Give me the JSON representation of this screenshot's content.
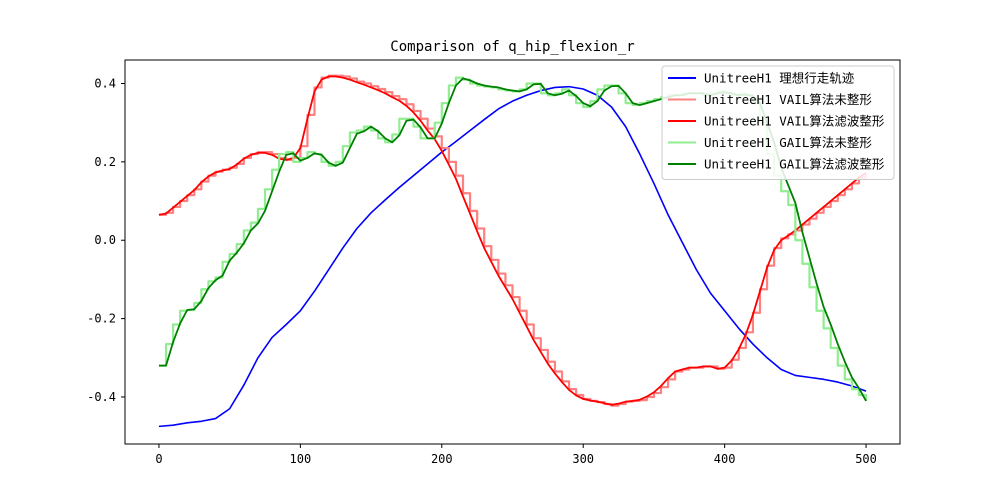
{
  "chart_data": {
    "type": "line",
    "title": "Comparison of q_hip_flexion_r",
    "xlabel": "",
    "ylabel": "",
    "xlim": [
      -24,
      524
    ],
    "ylim": [
      -0.52,
      0.46
    ],
    "xticks": [
      "0",
      "100",
      "200",
      "300",
      "400",
      "500"
    ],
    "yticks": [
      "-0.4",
      "-0.2",
      "0.0",
      "0.2",
      "0.4"
    ],
    "grid": false,
    "legend_position": "top-right",
    "series": [
      {
        "name": "UnitreeH1 理想行走轨迹",
        "color": "#0000ff",
        "style": "smooth",
        "width": 1.6,
        "x": [
          0,
          10,
          20,
          30,
          40,
          50,
          60,
          70,
          80,
          90,
          100,
          110,
          120,
          130,
          140,
          150,
          160,
          170,
          180,
          190,
          200,
          210,
          220,
          230,
          240,
          250,
          260,
          270,
          280,
          290,
          300,
          310,
          320,
          330,
          340,
          350,
          360,
          370,
          380,
          390,
          400,
          410,
          420,
          430,
          440,
          450,
          460,
          470,
          480,
          490,
          500
        ],
        "y": [
          -0.475,
          -0.472,
          -0.466,
          -0.462,
          -0.455,
          -0.43,
          -0.37,
          -0.3,
          -0.248,
          -0.215,
          -0.18,
          -0.13,
          -0.075,
          -0.02,
          0.03,
          0.07,
          0.103,
          0.135,
          0.165,
          0.195,
          0.225,
          0.252,
          0.28,
          0.308,
          0.335,
          0.355,
          0.37,
          0.382,
          0.39,
          0.392,
          0.386,
          0.37,
          0.34,
          0.29,
          0.22,
          0.145,
          0.065,
          -0.005,
          -0.075,
          -0.135,
          -0.18,
          -0.225,
          -0.265,
          -0.3,
          -0.33,
          -0.345,
          -0.35,
          -0.355,
          -0.362,
          -0.372,
          -0.385
        ]
      },
      {
        "name": "UnitreeH1 VAIL算法未整形",
        "color": "#ff8080",
        "style": "step",
        "width": 2.2,
        "x": [
          0,
          5,
          10,
          15,
          20,
          25,
          30,
          35,
          40,
          45,
          50,
          55,
          60,
          65,
          70,
          75,
          80,
          85,
          90,
          95,
          100,
          105,
          110,
          115,
          120,
          125,
          130,
          135,
          140,
          145,
          150,
          155,
          160,
          165,
          170,
          175,
          180,
          185,
          190,
          195,
          200,
          205,
          210,
          215,
          220,
          225,
          230,
          235,
          240,
          245,
          250,
          255,
          260,
          265,
          270,
          275,
          280,
          285,
          290,
          295,
          300,
          305,
          310,
          315,
          320,
          325,
          330,
          335,
          340,
          345,
          350,
          355,
          360,
          365,
          370,
          375,
          380,
          385,
          390,
          395,
          400,
          405,
          410,
          415,
          420,
          425,
          430,
          435,
          440,
          445,
          450,
          455,
          460,
          465,
          470,
          475,
          480,
          485,
          490,
          495,
          500
        ],
        "y": [
          0.065,
          0.07,
          0.085,
          0.1,
          0.115,
          0.13,
          0.15,
          0.165,
          0.175,
          0.18,
          0.185,
          0.195,
          0.21,
          0.22,
          0.225,
          0.225,
          0.22,
          0.21,
          0.205,
          0.21,
          0.24,
          0.32,
          0.39,
          0.415,
          0.42,
          0.42,
          0.418,
          0.413,
          0.405,
          0.4,
          0.393,
          0.386,
          0.378,
          0.368,
          0.36,
          0.347,
          0.33,
          0.31,
          0.285,
          0.265,
          0.235,
          0.2,
          0.165,
          0.12,
          0.075,
          0.03,
          -0.015,
          -0.05,
          -0.085,
          -0.115,
          -0.145,
          -0.18,
          -0.215,
          -0.25,
          -0.28,
          -0.31,
          -0.335,
          -0.36,
          -0.38,
          -0.395,
          -0.405,
          -0.41,
          -0.413,
          -0.418,
          -0.422,
          -0.418,
          -0.412,
          -0.41,
          -0.408,
          -0.4,
          -0.39,
          -0.375,
          -0.355,
          -0.335,
          -0.33,
          -0.325,
          -0.325,
          -0.322,
          -0.322,
          -0.328,
          -0.325,
          -0.305,
          -0.275,
          -0.235,
          -0.185,
          -0.125,
          -0.065,
          -0.02,
          0.005,
          0.015,
          0.025,
          0.04,
          0.055,
          0.07,
          0.085,
          0.1,
          0.115,
          0.13,
          0.145,
          0.16,
          0.17
        ]
      },
      {
        "name": "UnitreeH1 VAIL算法滤波整形",
        "color": "#ff0000",
        "style": "smooth",
        "width": 1.8,
        "x": [
          0,
          5,
          10,
          15,
          20,
          25,
          30,
          35,
          40,
          45,
          50,
          55,
          60,
          65,
          70,
          75,
          80,
          85,
          90,
          95,
          100,
          105,
          110,
          115,
          120,
          125,
          130,
          135,
          140,
          145,
          150,
          155,
          160,
          165,
          170,
          175,
          180,
          185,
          190,
          195,
          200,
          205,
          210,
          215,
          220,
          225,
          230,
          235,
          240,
          245,
          250,
          255,
          260,
          265,
          270,
          275,
          280,
          285,
          290,
          295,
          300,
          305,
          310,
          315,
          320,
          325,
          330,
          335,
          340,
          345,
          350,
          355,
          360,
          365,
          370,
          375,
          380,
          385,
          390,
          395,
          400,
          405,
          410,
          415,
          420,
          425,
          430,
          435,
          440,
          445,
          450,
          455,
          460,
          465,
          470,
          475,
          480,
          485,
          490,
          495,
          500
        ],
        "y": [
          0.065,
          0.068,
          0.083,
          0.098,
          0.113,
          0.128,
          0.148,
          0.163,
          0.173,
          0.178,
          0.182,
          0.193,
          0.208,
          0.218,
          0.223,
          0.223,
          0.218,
          0.208,
          0.205,
          0.21,
          0.235,
          0.31,
          0.38,
          0.41,
          0.418,
          0.418,
          0.415,
          0.41,
          0.403,
          0.397,
          0.39,
          0.383,
          0.375,
          0.365,
          0.356,
          0.343,
          0.326,
          0.305,
          0.28,
          0.258,
          0.228,
          0.193,
          0.157,
          0.112,
          0.068,
          0.023,
          -0.02,
          -0.055,
          -0.09,
          -0.12,
          -0.15,
          -0.185,
          -0.22,
          -0.255,
          -0.285,
          -0.315,
          -0.34,
          -0.362,
          -0.382,
          -0.396,
          -0.405,
          -0.409,
          -0.412,
          -0.416,
          -0.42,
          -0.417,
          -0.412,
          -0.41,
          -0.407,
          -0.399,
          -0.388,
          -0.372,
          -0.352,
          -0.335,
          -0.33,
          -0.325,
          -0.325,
          -0.322,
          -0.322,
          -0.328,
          -0.325,
          -0.307,
          -0.278,
          -0.24,
          -0.19,
          -0.13,
          -0.07,
          -0.025,
          0.0,
          0.012,
          0.025,
          0.04,
          0.055,
          0.07,
          0.085,
          0.1,
          0.115,
          0.13,
          0.145,
          0.16,
          0.172
        ]
      },
      {
        "name": "UnitreeH1 GAIL算法未整形",
        "color": "#90ee90",
        "style": "step",
        "width": 2.2,
        "x": [
          0,
          5,
          10,
          15,
          20,
          25,
          30,
          35,
          40,
          45,
          50,
          55,
          60,
          65,
          70,
          75,
          80,
          85,
          90,
          95,
          100,
          105,
          110,
          115,
          120,
          125,
          130,
          135,
          140,
          145,
          150,
          155,
          160,
          165,
          170,
          175,
          180,
          185,
          190,
          195,
          200,
          205,
          210,
          215,
          220,
          225,
          230,
          235,
          240,
          245,
          250,
          255,
          260,
          265,
          270,
          275,
          280,
          285,
          290,
          295,
          300,
          305,
          310,
          315,
          320,
          325,
          330,
          335,
          340,
          345,
          350,
          355,
          360,
          365,
          370,
          375,
          380,
          385,
          390,
          395,
          400,
          405,
          410,
          415,
          420,
          425,
          430,
          435,
          440,
          445,
          450,
          455,
          460,
          465,
          470,
          475,
          480,
          485,
          490,
          495,
          500
        ],
        "y": [
          -0.32,
          -0.265,
          -0.215,
          -0.18,
          -0.178,
          -0.16,
          -0.125,
          -0.105,
          -0.095,
          -0.055,
          -0.035,
          -0.01,
          0.025,
          0.045,
          0.08,
          0.13,
          0.18,
          0.22,
          0.225,
          0.2,
          0.21,
          0.225,
          0.22,
          0.2,
          0.19,
          0.2,
          0.24,
          0.275,
          0.28,
          0.29,
          0.28,
          0.26,
          0.25,
          0.27,
          0.31,
          0.31,
          0.29,
          0.26,
          0.26,
          0.3,
          0.35,
          0.395,
          0.415,
          0.41,
          0.4,
          0.395,
          0.392,
          0.39,
          0.385,
          0.382,
          0.38,
          0.385,
          0.4,
          0.4,
          0.375,
          0.37,
          0.375,
          0.385,
          0.37,
          0.35,
          0.34,
          0.355,
          0.385,
          0.395,
          0.395,
          0.375,
          0.35,
          0.345,
          0.35,
          0.355,
          0.36,
          0.365,
          0.37,
          0.37,
          0.375,
          0.375,
          0.375,
          0.37,
          0.375,
          0.38,
          0.375,
          0.37,
          0.375,
          0.37,
          0.35,
          0.3,
          0.22,
          0.165,
          0.125,
          0.09,
          0.0,
          -0.06,
          -0.12,
          -0.18,
          -0.225,
          -0.275,
          -0.32,
          -0.355,
          -0.38,
          -0.395,
          -0.41
        ]
      },
      {
        "name": "UnitreeH1 GAIL算法滤波整形",
        "color": "#008000",
        "style": "smooth",
        "width": 1.8,
        "x": [
          0,
          5,
          10,
          15,
          20,
          25,
          30,
          35,
          40,
          45,
          50,
          55,
          60,
          65,
          70,
          75,
          80,
          85,
          90,
          95,
          100,
          105,
          110,
          115,
          120,
          125,
          130,
          135,
          140,
          145,
          150,
          155,
          160,
          165,
          170,
          175,
          180,
          185,
          190,
          195,
          200,
          205,
          210,
          215,
          220,
          225,
          230,
          235,
          240,
          245,
          250,
          255,
          260,
          265,
          270,
          275,
          280,
          285,
          290,
          295,
          300,
          305,
          310,
          315,
          320,
          325,
          330,
          335,
          340,
          345,
          350,
          355,
          360,
          365,
          370,
          375,
          380,
          385,
          390,
          395,
          400,
          405,
          410,
          415,
          420,
          425,
          430,
          435,
          440,
          445,
          450,
          455,
          460,
          465,
          470,
          475,
          480,
          485,
          490,
          495,
          500
        ],
        "y": [
          -0.32,
          -0.32,
          -0.26,
          -0.212,
          -0.178,
          -0.176,
          -0.155,
          -0.122,
          -0.102,
          -0.09,
          -0.052,
          -0.032,
          -0.008,
          0.025,
          0.043,
          0.075,
          0.125,
          0.175,
          0.218,
          0.222,
          0.203,
          0.21,
          0.222,
          0.218,
          0.198,
          0.19,
          0.198,
          0.235,
          0.272,
          0.278,
          0.29,
          0.278,
          0.26,
          0.25,
          0.268,
          0.305,
          0.308,
          0.288,
          0.26,
          0.26,
          0.298,
          0.35,
          0.395,
          0.413,
          0.408,
          0.4,
          0.395,
          0.392,
          0.39,
          0.385,
          0.382,
          0.38,
          0.385,
          0.398,
          0.399,
          0.375,
          0.37,
          0.374,
          0.382,
          0.368,
          0.35,
          0.342,
          0.355,
          0.382,
          0.393,
          0.394,
          0.375,
          0.35,
          0.345,
          0.35,
          0.355,
          0.36,
          0.365,
          0.37,
          0.37,
          0.375,
          0.375,
          0.375,
          0.37,
          0.375,
          0.378,
          0.375,
          0.37,
          0.372,
          0.368,
          0.35,
          0.3,
          0.25,
          0.185,
          0.14,
          0.095,
          0.02,
          -0.045,
          -0.11,
          -0.17,
          -0.215,
          -0.265,
          -0.31,
          -0.35,
          -0.378,
          -0.41
        ]
      }
    ]
  }
}
